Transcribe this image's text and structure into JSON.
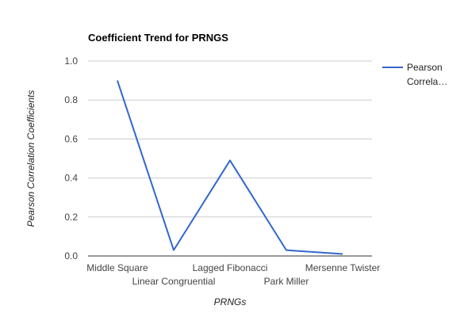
{
  "chart_data": {
    "type": "line",
    "title": "Coefficient Trend for PRNGS",
    "xlabel": "PRNGs",
    "ylabel": "Pearson Correlation Coefficients",
    "categories": [
      "Middle Square",
      "Linear Congruential",
      "Lagged Fibonacci",
      "Park Miller",
      "Mersenne Twister"
    ],
    "series": [
      {
        "name": "Pearson Correla…",
        "values": [
          0.9,
          0.03,
          0.49,
          0.03,
          0.01
        ],
        "color": "#3366cc"
      }
    ],
    "ylim": [
      0,
      1
    ],
    "yticks": [
      "0.0",
      "0.2",
      "0.4",
      "0.6",
      "0.8",
      "1.0"
    ],
    "grid": true,
    "legend_position": "right",
    "legend_lines": [
      "Pearson",
      "Correla…"
    ]
  }
}
